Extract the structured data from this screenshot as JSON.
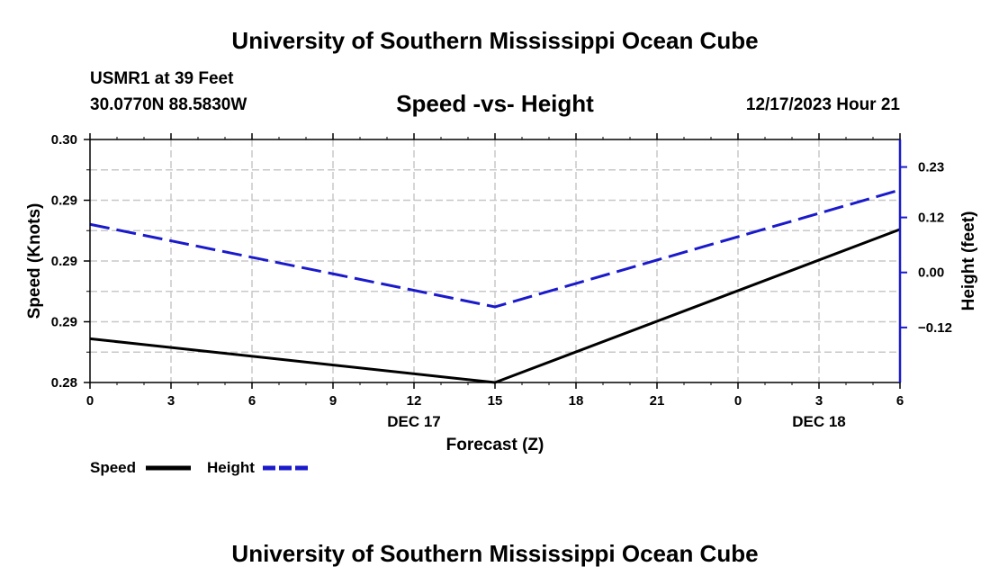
{
  "header": {
    "title": "University of Southern Mississippi Ocean Cube",
    "station": "USMR1 at 39 Feet",
    "coords": "30.0770N  88.5830W",
    "datetime": "12/17/2023 Hour 21",
    "footer_title": "University of Southern Mississippi Ocean Cube"
  },
  "chart_data": {
    "type": "line",
    "title": "Speed -vs- Height",
    "xlabel": "Forecast (Z)",
    "ylabel": "Speed (Knots)",
    "y2label": "Height (feet)",
    "x": [
      0,
      15,
      30
    ],
    "x_ticks": [
      "0",
      "3",
      "6",
      "9",
      "12",
      "15",
      "18",
      "21",
      "0",
      "3",
      "6"
    ],
    "date_labels": [
      {
        "label": "DEC 17",
        "tick_index": 4
      },
      {
        "label": "DEC 18",
        "tick_index": 9
      }
    ],
    "ylim": [
      0.28,
      0.3
    ],
    "y_ticks": [
      "0.28",
      "0.29",
      "0.29",
      "0.29",
      "0.30"
    ],
    "y2lim": [
      -0.24,
      0.29
    ],
    "y2_ticks": [
      -0.12,
      0.0,
      0.12,
      0.23
    ],
    "y2_tick_labels": [
      "−0.12",
      "0.00",
      "0.12",
      "0.23"
    ],
    "series": [
      {
        "name": "Speed",
        "axis": "left",
        "color": "#000000",
        "dash": "solid",
        "values": [
          0.2836,
          0.28,
          0.2926
        ]
      },
      {
        "name": "Height",
        "axis": "right",
        "color": "#1a1acc",
        "dash": "dashed",
        "values": [
          0.105,
          -0.075,
          0.18
        ]
      }
    ],
    "legend": {
      "placement": "bottom-left"
    }
  }
}
